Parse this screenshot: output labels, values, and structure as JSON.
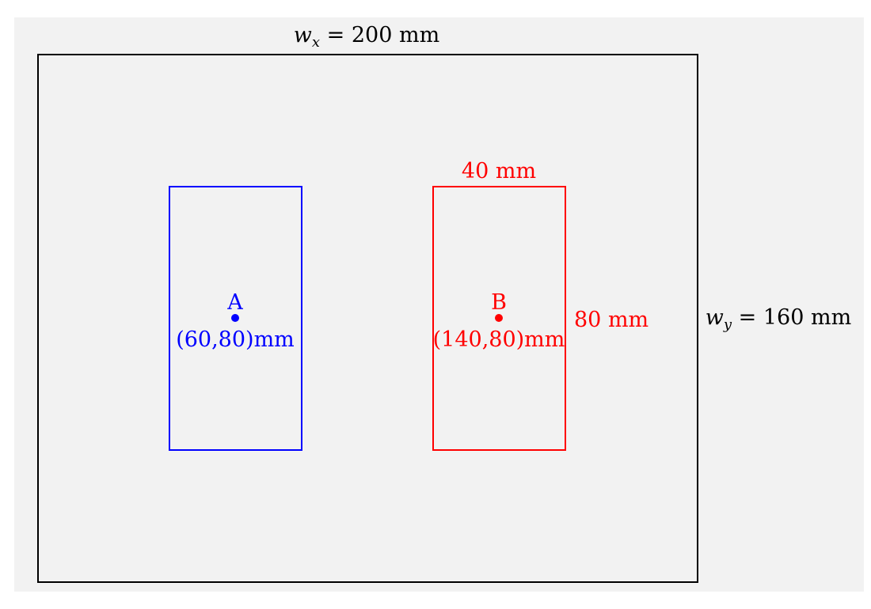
{
  "colors": {
    "background": "#f2f2f2",
    "boundary": "#000000",
    "region_a": "#0000ff",
    "region_b": "#ff0000"
  },
  "units": "mm",
  "domain": {
    "width_label_var": "w",
    "width_label_sub": "x",
    "width_label_eq": " = 200 mm",
    "height_label_var": "w",
    "height_label_sub": "y",
    "height_label_eq": " = 160 mm",
    "width": 200,
    "height": 160
  },
  "regions": [
    {
      "name": "A",
      "center": [
        60,
        80
      ],
      "size": [
        40,
        80
      ],
      "coord_label": "(60,80)mm",
      "color": "#0000ff"
    },
    {
      "name": "B",
      "center": [
        140,
        80
      ],
      "size": [
        40,
        80
      ],
      "coord_label": "(140,80)mm",
      "color": "#ff0000",
      "width_label": "40 mm",
      "height_label": "80 mm"
    }
  ]
}
